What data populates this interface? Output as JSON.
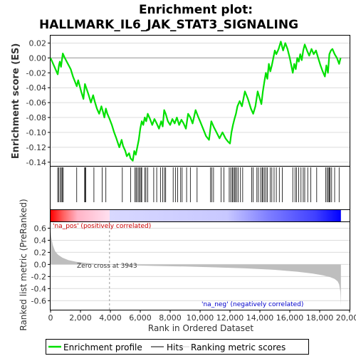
{
  "chart_data": {
    "type": "line",
    "title": "Enrichment plot:\nHALLMARK_IL6_JAK_STAT3_SIGNALING",
    "title_lines": [
      "Enrichment plot:",
      "HALLMARK_IL6_JAK_STAT3_SIGNALING"
    ],
    "colors": {
      "enrichment_line": "#00e000",
      "hits": "#000000",
      "ranking_fill": "#bebebe",
      "zero_line": "#aaaaaa",
      "pos_text": "#cc0000",
      "neg_text": "#0000cc"
    },
    "enrichment": {
      "ylabel": "Enrichment score (ES)",
      "ylim": [
        -0.145,
        0.03
      ],
      "yticks": [
        -0.14,
        -0.12,
        -0.1,
        -0.08,
        -0.06,
        -0.04,
        -0.02,
        0.0,
        0.02
      ],
      "ytick_labels": [
        "-0.14",
        "-0.12",
        "-0.10",
        "-0.08",
        "-0.06",
        "-0.04",
        "-0.02",
        "0.00",
        "0.02"
      ],
      "xlim": [
        0,
        20000
      ],
      "series_name": "Enrichment profile",
      "x": [
        0,
        220,
        480,
        560,
        620,
        700,
        820,
        950,
        1350,
        1500,
        1750,
        1850,
        2050,
        2200,
        2300,
        2420,
        2550,
        2700,
        2850,
        2950,
        3100,
        3250,
        3400,
        3500,
        3600,
        3700,
        3800,
        3950,
        4100,
        4250,
        4400,
        4600,
        4750,
        4850,
        5000,
        5100,
        5250,
        5350,
        5500,
        5600,
        5700,
        5800,
        5900,
        6000,
        6100,
        6200,
        6300,
        6400,
        6500,
        6650,
        6800,
        6950,
        7100,
        7250,
        7400,
        7500,
        7600,
        7700,
        7850,
        8000,
        8150,
        8300,
        8450,
        8600,
        8750,
        8900,
        9050,
        9200,
        9350,
        9500,
        9700,
        9850,
        10000,
        10200,
        10400,
        10600,
        10750,
        10900,
        11100,
        11300,
        11500,
        11700,
        11850,
        12000,
        12100,
        12200,
        12300,
        12400,
        12500,
        12650,
        12800,
        13000,
        13200,
        13400,
        13550,
        13700,
        13850,
        14000,
        14100,
        14200,
        14300,
        14400,
        14500,
        14600,
        14700,
        14800,
        14900,
        15000,
        15100,
        15250,
        15400,
        15550,
        15700,
        15850,
        16000,
        16100,
        16200,
        16300,
        16400,
        16500,
        16600,
        16700,
        16800,
        16900,
        17000,
        17150,
        17300,
        17450,
        17600,
        17750,
        17900,
        18050,
        18200,
        18350,
        18450,
        18550,
        18650,
        18750,
        18850,
        19000,
        19150,
        19300,
        19400
      ],
      "y": [
        0.0,
        -0.01,
        -0.022,
        -0.01,
        -0.005,
        -0.012,
        0.006,
        0.0,
        -0.015,
        -0.025,
        -0.038,
        -0.03,
        -0.045,
        -0.055,
        -0.035,
        -0.042,
        -0.05,
        -0.06,
        -0.05,
        -0.058,
        -0.068,
        -0.075,
        -0.065,
        -0.072,
        -0.08,
        -0.068,
        -0.075,
        -0.082,
        -0.09,
        -0.1,
        -0.108,
        -0.12,
        -0.11,
        -0.118,
        -0.125,
        -0.132,
        -0.128,
        -0.135,
        -0.138,
        -0.125,
        -0.13,
        -0.12,
        -0.11,
        -0.095,
        -0.085,
        -0.09,
        -0.08,
        -0.085,
        -0.075,
        -0.082,
        -0.09,
        -0.082,
        -0.088,
        -0.095,
        -0.085,
        -0.092,
        -0.07,
        -0.075,
        -0.085,
        -0.09,
        -0.082,
        -0.088,
        -0.08,
        -0.09,
        -0.083,
        -0.088,
        -0.095,
        -0.075,
        -0.08,
        -0.088,
        -0.07,
        -0.078,
        -0.085,
        -0.095,
        -0.105,
        -0.11,
        -0.085,
        -0.092,
        -0.1,
        -0.108,
        -0.1,
        -0.108,
        -0.112,
        -0.115,
        -0.1,
        -0.09,
        -0.082,
        -0.075,
        -0.065,
        -0.058,
        -0.065,
        -0.045,
        -0.055,
        -0.068,
        -0.075,
        -0.065,
        -0.045,
        -0.055,
        -0.062,
        -0.045,
        -0.032,
        -0.02,
        -0.028,
        -0.008,
        -0.018,
        -0.01,
        0.0,
        0.01,
        0.005,
        0.012,
        0.022,
        0.01,
        0.02,
        0.012,
        0.0,
        -0.01,
        -0.02,
        -0.008,
        -0.015,
        0.0,
        -0.005,
        0.005,
        -0.003,
        0.01,
        0.018,
        0.01,
        0.003,
        0.012,
        0.005,
        0.01,
        0.0,
        -0.01,
        -0.018,
        -0.025,
        -0.01,
        -0.02,
        0.005,
        0.01,
        0.012,
        0.005,
        0.0,
        -0.008,
        0.0
      ]
    },
    "hits": {
      "series_name": "Hits",
      "positions": [
        480,
        540,
        650,
        720,
        780,
        850,
        1750,
        2280,
        2320,
        2350,
        2900,
        3450,
        3700,
        4800,
        5350,
        5650,
        5720,
        5800,
        5900,
        5960,
        6050,
        6100,
        6300,
        6380,
        6500,
        6900,
        7100,
        7350,
        7500,
        7620,
        7700,
        8200,
        8350,
        8500,
        8700,
        8800,
        9100,
        9350,
        9800,
        10700,
        10780,
        10900,
        11400,
        11600,
        11950,
        12050,
        12150,
        12200,
        12300,
        12350,
        12450,
        12550,
        12700,
        12850,
        13450,
        13550,
        13800,
        13900,
        14050,
        14150,
        14200,
        14300,
        14400,
        14500,
        14700,
        14800,
        14950,
        15100,
        15300,
        15500,
        16200,
        16350,
        16450,
        16600,
        16750,
        16900,
        17000,
        17200,
        17400,
        17800,
        18400,
        18500,
        18580,
        18650,
        18700,
        18800,
        19000,
        19300
      ]
    },
    "ranking": {
      "ylabel": "Ranked list metric (PreRanked)",
      "xlabel": "Rank in Ordered Dataset",
      "ylim": [
        -0.75,
        0.7
      ],
      "yticks": [
        -0.6,
        -0.4,
        -0.2,
        0.0,
        0.2,
        0.4,
        0.6
      ],
      "ytick_labels": [
        "-0.6",
        "-0.4",
        "-0.2",
        "0.0",
        "0.2",
        "0.4",
        "0.6"
      ],
      "xlim": [
        0,
        20000
      ],
      "xticks": [
        0,
        2000,
        4000,
        6000,
        8000,
        10000,
        12000,
        14000,
        16000,
        18000,
        20000
      ],
      "xtick_labels": [
        "0",
        "2,000",
        "4,000",
        "6,000",
        "8,000",
        "10,000",
        "12,000",
        "14,000",
        "16,000",
        "18,000",
        "20,000"
      ],
      "series_name": "Ranking metric scores",
      "x": [
        0,
        50,
        150,
        300,
        500,
        800,
        1200,
        1700,
        2300,
        3000,
        3943,
        5000,
        7000,
        9000,
        11000,
        13000,
        15000,
        16500,
        17500,
        18200,
        18700,
        19000,
        19200,
        19300,
        19380,
        19420
      ],
      "y": [
        0.55,
        0.45,
        0.32,
        0.22,
        0.16,
        0.11,
        0.07,
        0.045,
        0.025,
        0.01,
        0.0,
        -0.012,
        -0.025,
        -0.035,
        -0.048,
        -0.065,
        -0.09,
        -0.12,
        -0.15,
        -0.18,
        -0.21,
        -0.24,
        -0.28,
        -0.33,
        -0.45,
        -0.68
      ],
      "zero_cross_x": 3943,
      "zero_cross_label": "Zero cross at 3943",
      "pos_label": "'na_pos' (positively correlated)",
      "neg_label": "'na_neg' (negatively correlated)"
    },
    "heatbar": {
      "stops": [
        {
          "x": 0,
          "color": "#ff0000"
        },
        {
          "x": 900,
          "color": "#ff6666"
        },
        {
          "x": 1800,
          "color": "#ffb3c6"
        },
        {
          "x": 3943,
          "color": "#ffe0f0"
        },
        {
          "x": 3944,
          "color": "#d8d8ff"
        },
        {
          "x": 11800,
          "color": "#c8c8ff"
        },
        {
          "x": 14500,
          "color": "#8080ff"
        },
        {
          "x": 17700,
          "color": "#4040ff"
        },
        {
          "x": 19420,
          "color": "#0000ff"
        }
      ]
    },
    "legend": {
      "placement": "bottom",
      "items": [
        {
          "label": "Enrichment profile",
          "kind": "line"
        },
        {
          "label": "Hits",
          "kind": "hit"
        },
        {
          "label": "Ranking metric scores",
          "kind": "fill"
        }
      ]
    }
  }
}
